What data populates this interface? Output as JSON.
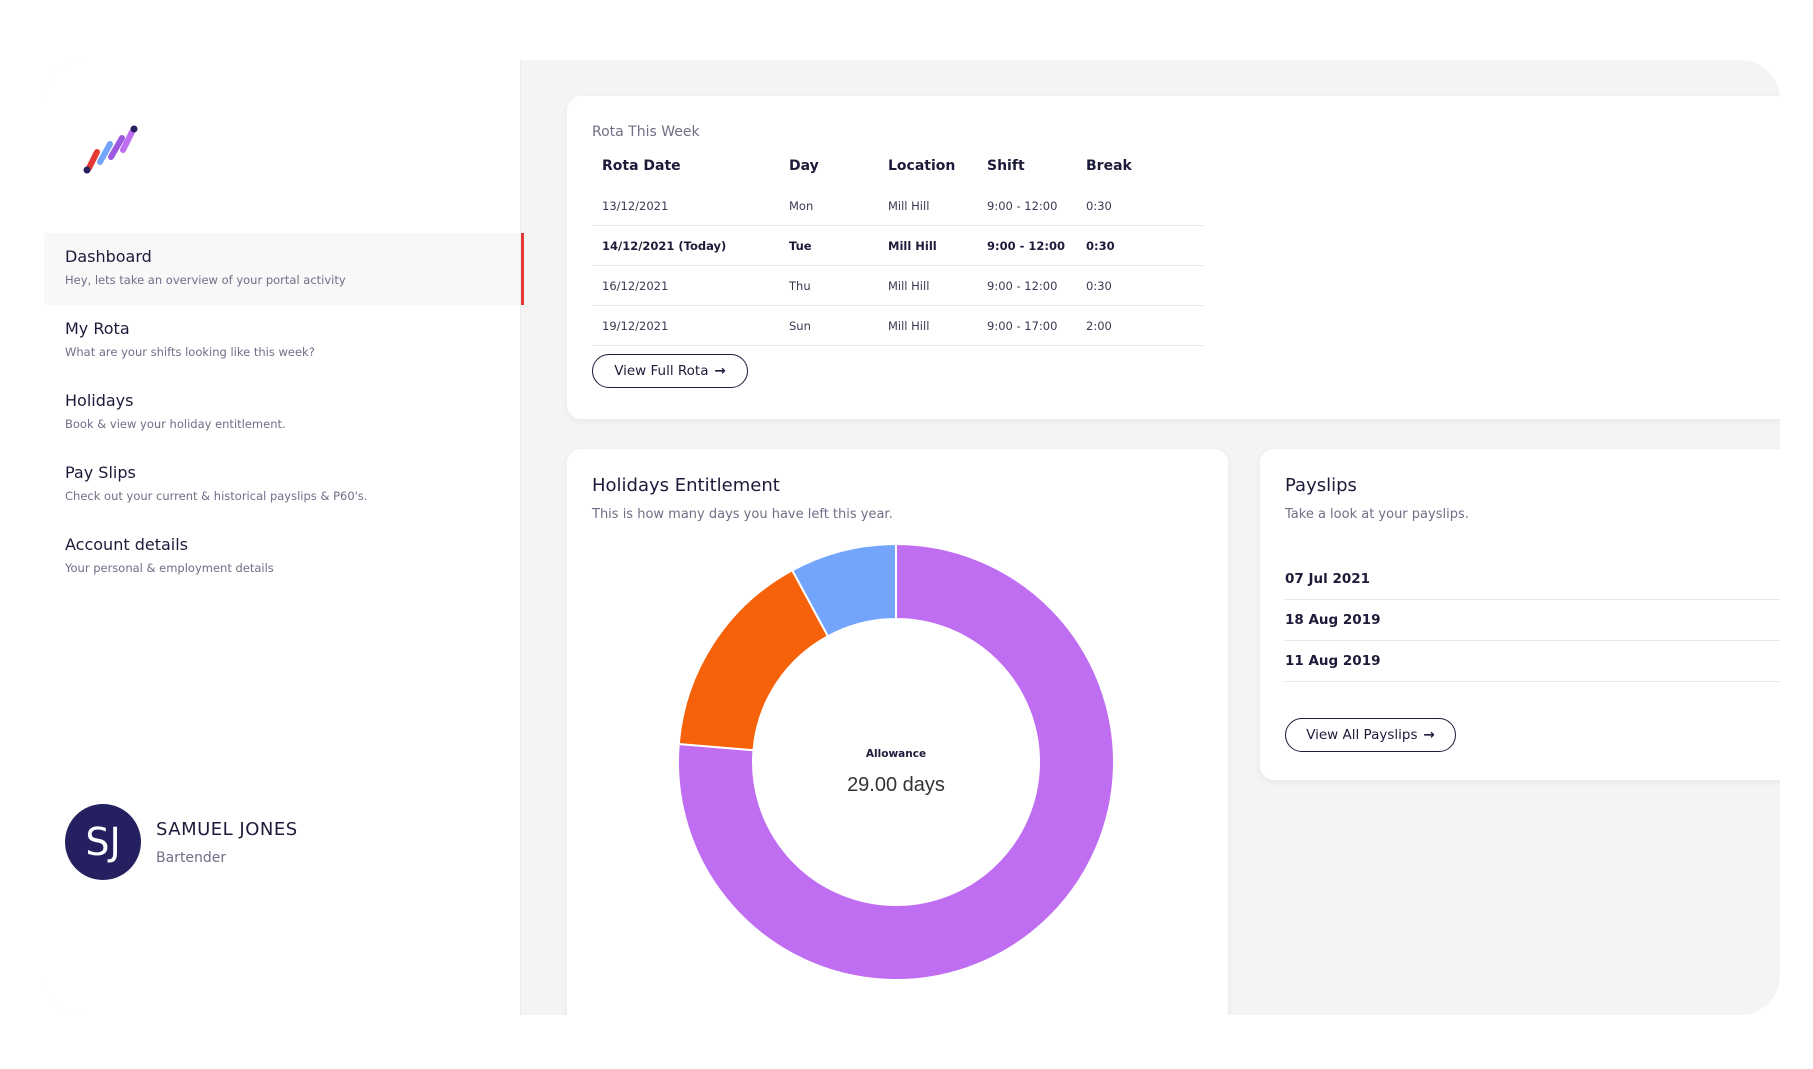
{
  "sidebar": {
    "nav": [
      {
        "title": "Dashboard",
        "sub": "Hey, lets take an overview of your portal activity",
        "active": true
      },
      {
        "title": "My Rota",
        "sub": "What are your shifts looking like this week?"
      },
      {
        "title": "Holidays",
        "sub": "Book & view your holiday entitlement."
      },
      {
        "title": "Pay Slips",
        "sub": "Check out your current & historical payslips & P60's."
      },
      {
        "title": "Account details",
        "sub": "Your personal & employment details"
      }
    ],
    "user": {
      "initials": "SJ",
      "name": "SAMUEL JONES",
      "role": "Bartender"
    }
  },
  "rota": {
    "title": "Rota This Week",
    "headers": [
      "Rota Date",
      "Day",
      "Location",
      "Shift",
      "Break"
    ],
    "rows": [
      [
        "13/12/2021",
        "Mon",
        "Mill Hill",
        "9:00 - 12:00",
        "0:30"
      ],
      [
        "14/12/2021 (Today)",
        "Tue",
        "Mill Hill",
        "9:00 - 12:00",
        "0:30"
      ],
      [
        "16/12/2021",
        "Thu",
        "Mill Hill",
        "9:00 - 12:00",
        "0:30"
      ],
      [
        "19/12/2021",
        "Sun",
        "Mill Hill",
        "9:00 - 17:00",
        "2:00"
      ]
    ],
    "button": "View Full Rota"
  },
  "holidays": {
    "title": "Holidays Entitlement",
    "subtitle": "This is how many days you have left this year.",
    "center_label": "Allowance",
    "center_value": "29.00 days"
  },
  "payslips": {
    "title": "Payslips",
    "subtitle": "Take a look at your payslips.",
    "items": [
      "07 Jul 2021",
      "18 Aug 2019",
      "11 Aug 2019"
    ],
    "button": "View All Payslips"
  },
  "chart_data": {
    "type": "pie",
    "variant": "donut",
    "slices": [
      {
        "value": 29,
        "color": "#bf6ef2"
      },
      {
        "value": 6,
        "color": "#f5620a"
      },
      {
        "value": 3,
        "color": "#72a5fb"
      }
    ]
  },
  "colors": {
    "accent_active": "#e53935",
    "avatar_bg": "#252160",
    "text_dark": "#1d1b3a"
  },
  "icons": {
    "arrow": "→"
  }
}
